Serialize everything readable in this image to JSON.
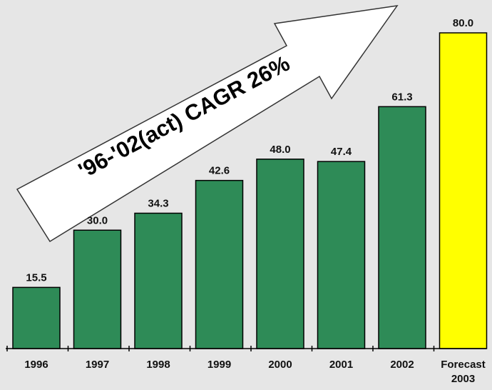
{
  "chart_data": {
    "type": "bar",
    "categories": [
      [
        "1996"
      ],
      [
        "1997"
      ],
      [
        "1998"
      ],
      [
        "1999"
      ],
      [
        "2000"
      ],
      [
        "2001"
      ],
      [
        "2002"
      ],
      [
        "Forecast",
        "2003"
      ]
    ],
    "values": [
      15.5,
      30.0,
      34.3,
      42.6,
      48.0,
      47.4,
      61.3,
      80.0
    ],
    "value_labels": [
      "15.5",
      "30.0",
      "34.3",
      "42.6",
      "48.0",
      "47.4",
      "61.3",
      "80.0"
    ],
    "bar_colors": [
      "#2e8b57",
      "#2e8b57",
      "#2e8b57",
      "#2e8b57",
      "#2e8b57",
      "#2e8b57",
      "#2e8b57",
      "#ffff00"
    ],
    "ylim": [
      0,
      80
    ],
    "grid": false,
    "annotation": "'96-'02(act) CAGR 26%"
  }
}
